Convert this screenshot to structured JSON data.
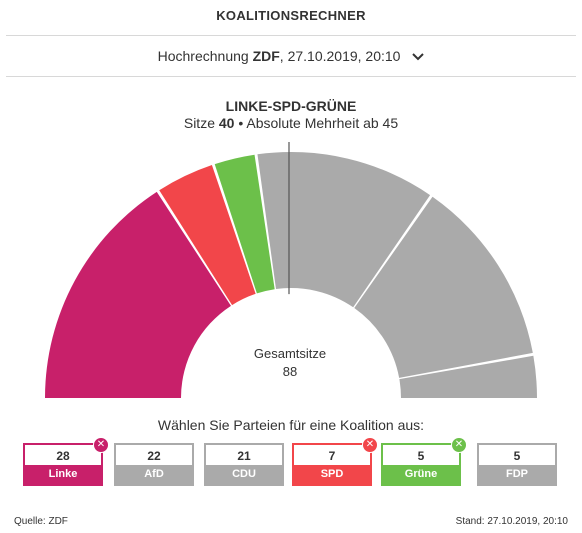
{
  "header": {
    "title": "KOALITIONSRECHNER"
  },
  "forecast": {
    "prefix": "Hochrechnung ",
    "source": "ZDF",
    "suffix": ", 27.10.2019, 20:10",
    "dropdown_icon": "chevron-down-icon"
  },
  "coalition": {
    "name": "LINKE-SPD-GRÜNE",
    "seats_prefix": "Sitze ",
    "seats": "40",
    "majority_text": " • Absolute Mehrheit ab 45"
  },
  "total": {
    "label": "Gesamtsitze",
    "value": "88"
  },
  "prompt": "Wählen Sie Parteien für eine Koalition aus:",
  "inactive_color": "#aaaaaa",
  "parties": [
    {
      "name": "Linke",
      "seats": "28",
      "color": "#c8206a",
      "selected": true
    },
    {
      "name": "AfD",
      "seats": "22",
      "color": "#009ee0",
      "selected": false
    },
    {
      "name": "CDU",
      "seats": "21",
      "color": "#000000",
      "selected": false
    },
    {
      "name": "SPD",
      "seats": "7",
      "color": "#f2464a",
      "selected": true
    },
    {
      "name": "Grüne",
      "seats": "5",
      "color": "#6cc04a",
      "selected": true
    },
    {
      "name": "FDP",
      "seats": "5",
      "color": "#ffed00",
      "selected": false
    }
  ],
  "remove_icon": "x",
  "footer": {
    "source": "Quelle: ZDF",
    "stand": "Stand: 27.10.2019, 20:10"
  },
  "chart_data": {
    "type": "pie",
    "style": "half-donut",
    "categories": [
      "Linke",
      "SPD",
      "Grüne",
      "CDU",
      "AfD",
      "FDP"
    ],
    "values": [
      28,
      7,
      5,
      21,
      22,
      5
    ],
    "total": 88,
    "majority_threshold": 45
  }
}
